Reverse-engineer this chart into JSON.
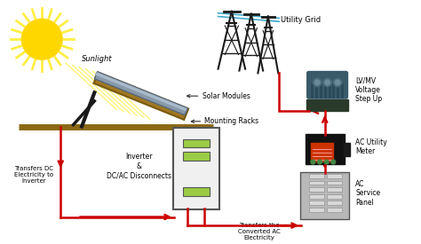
{
  "bg_color": "#ffffff",
  "labels": {
    "sunlight": "Sunlight",
    "solar_modules": "Solar Modules",
    "mounting_racks": "Mounting Racks",
    "transfers_dc": "Transfers DC\nElectricity to\nInverter",
    "inverter": "Inverter\n&\nDC/AC Disconnects",
    "transfers_ac": "Transfers the\nConverted AC\nElectricity",
    "utility_grid": "Utility Grid",
    "lv_mv": "LV/MV\nVoltage\nStep Up",
    "ac_meter": "AC Utility\nMeter",
    "ac_panel": "AC\nService\nPanel"
  },
  "arrow_color": "#cc0000",
  "text_color": "#000000",
  "sun_color": "#FFD700",
  "sun_ray_color": "#FFEE44",
  "tower_color": "#1a1a1a",
  "wire_color": "#44aacc",
  "inverter_bg": "#f0f0f0",
  "inverter_border": "#555555",
  "green_display": "#99cc44",
  "transformer_body": "#5588aa",
  "transformer_dark": "#2a4a5a",
  "meter_bg": "#111111",
  "meter_screen": "#cc3300",
  "panel_bg": "#b0b0b0",
  "panel_border": "#555555",
  "panel_breaker": "#cccccc"
}
